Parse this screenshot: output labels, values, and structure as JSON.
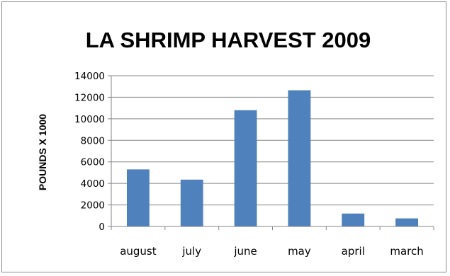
{
  "chart_data": {
    "type": "bar",
    "title": "LA SHRIMP HARVEST 2009",
    "xlabel": "",
    "ylabel": "POUNDS X 1000",
    "categories": [
      "august",
      "july",
      "june",
      "may",
      "april",
      "march"
    ],
    "values": [
      5300,
      4350,
      10800,
      12650,
      1200,
      750
    ],
    "ylim": [
      0,
      14000
    ],
    "ytick_step": 2000,
    "grid": true,
    "legend": "none",
    "bar_color": "#4f81bd",
    "grid_color": "#868686"
  }
}
